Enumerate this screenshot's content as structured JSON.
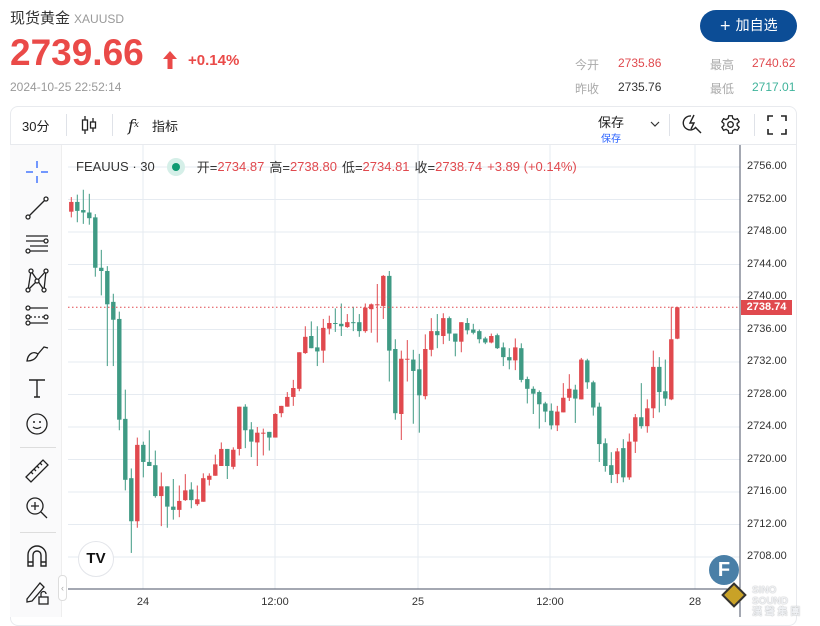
{
  "header": {
    "name": "现货黄金",
    "symbol": "XAUUSD",
    "price": "2739.66",
    "change_pct": "+0.14%",
    "timestamp": "2024-10-25 22:52:14",
    "add_watchlist": "+ 加自选"
  },
  "stats": {
    "open_label": "今开",
    "open": "2735.86",
    "high_label": "最高",
    "high": "2740.62",
    "prev_close_label": "昨收",
    "prev_close": "2735.76",
    "low_label": "最低",
    "low": "2717.01"
  },
  "toolbar": {
    "interval": "30分",
    "indicators": "指标",
    "save": "保存",
    "save_sub": "保存"
  },
  "legend": {
    "title": "FEAUUS · 30",
    "open_label": "开=",
    "open": "2734.87",
    "high_label": "高=",
    "high": "2738.80",
    "low_label": "低=",
    "low": "2734.81",
    "close_label": "收=",
    "close": "2738.74",
    "change": "+3.89 (+0.14%)"
  },
  "colors": {
    "up": "#e0494e",
    "down": "#3f9a84",
    "accent": "#0c4d96"
  },
  "watermark": "SINO SOUND 漢聲集團",
  "chart_data": {
    "type": "candlestick",
    "title": "",
    "xlabel": "",
    "ylabel": "",
    "ylim": [
      2705,
      2758
    ],
    "y_ticks": [
      "2756.00",
      "2752.00",
      "2748.00",
      "2744.00",
      "2740.00",
      "2736.00",
      "2732.00",
      "2728.00",
      "2724.00",
      "2720.00",
      "2716.00",
      "2712.00",
      "2708.00"
    ],
    "x_ticks": [
      "24",
      "12:00",
      "25",
      "12:00",
      "28"
    ],
    "last_price": "2738.74",
    "grid": true,
    "ohlc": [
      [
        2750.5,
        2752.3,
        2749.8,
        2751.7
      ],
      [
        2751.7,
        2752.6,
        2749.2,
        2750.6
      ],
      [
        2750.7,
        2753.2,
        2749.0,
        2750.4
      ],
      [
        2750.4,
        2752.7,
        2748.9,
        2749.7
      ],
      [
        2749.8,
        2750.2,
        2742.5,
        2743.6
      ],
      [
        2743.6,
        2745.8,
        2740.2,
        2743.2
      ],
      [
        2743.2,
        2743.8,
        2731.5,
        2739.1
      ],
      [
        2739.4,
        2740.4,
        2731.5,
        2737.2
      ],
      [
        2737.3,
        2738.2,
        2723.6,
        2724.9
      ],
      [
        2725.0,
        2728.6,
        2716.2,
        2717.5
      ],
      [
        2717.7,
        2718.9,
        2708.5,
        2712.4
      ],
      [
        2712.4,
        2722.7,
        2711.6,
        2721.8
      ],
      [
        2721.8,
        2722.2,
        2717.8,
        2719.7
      ],
      [
        2719.7,
        2723.6,
        2719.2,
        2719.2
      ],
      [
        2719.3,
        2721.1,
        2715.3,
        2715.5
      ],
      [
        2715.5,
        2718.4,
        2711.8,
        2716.7
      ],
      [
        2716.7,
        2716.7,
        2711.6,
        2714.2
      ],
      [
        2714.2,
        2717.6,
        2712.6,
        2713.8
      ],
      [
        2713.8,
        2716.8,
        2712.9,
        2714.9
      ],
      [
        2715.0,
        2718.2,
        2714.9,
        2716.2
      ],
      [
        2716.3,
        2717.2,
        2714.0,
        2715.0
      ],
      [
        2714.5,
        2716.8,
        2714.3,
        2715.1
      ],
      [
        2714.8,
        2718.3,
        2714.8,
        2717.7
      ],
      [
        2717.5,
        2718.3,
        2716.8,
        2718.0
      ],
      [
        2718.0,
        2720.6,
        2718.0,
        2719.4
      ],
      [
        2719.2,
        2722.1,
        2719.2,
        2721.3
      ],
      [
        2721.3,
        2721.3,
        2717.6,
        2719.2
      ],
      [
        2719.1,
        2721.5,
        2718.8,
        2721.2
      ],
      [
        2721.3,
        2726.5,
        2720.5,
        2726.5
      ],
      [
        2726.5,
        2726.8,
        2721.4,
        2723.6
      ],
      [
        2723.7,
        2724.6,
        2720.3,
        2722.2
      ],
      [
        2722.1,
        2724.0,
        2719.2,
        2723.3
      ],
      [
        2723.2,
        2723.8,
        2720.5,
        2723.3
      ],
      [
        2723.4,
        2723.4,
        2721.1,
        2722.7
      ],
      [
        2722.7,
        2725.7,
        2722.7,
        2725.6
      ],
      [
        2725.7,
        2726.6,
        2725.2,
        2726.6
      ],
      [
        2726.5,
        2728.3,
        2726.5,
        2727.7
      ],
      [
        2727.7,
        2729.8,
        2726.6,
        2728.8
      ],
      [
        2728.7,
        2733.2,
        2728.4,
        2733.2
      ],
      [
        2733.1,
        2736.4,
        2733.0,
        2735.1
      ],
      [
        2735.2,
        2737.0,
        2733.7,
        2733.7
      ],
      [
        2733.8,
        2736.4,
        2731.5,
        2733.3
      ],
      [
        2733.4,
        2737.3,
        2731.9,
        2736.2
      ],
      [
        2736.1,
        2737.7,
        2735.4,
        2736.8
      ],
      [
        2736.8,
        2738.6,
        2735.7,
        2736.7
      ],
      [
        2736.7,
        2739.2,
        2735.2,
        2736.4
      ],
      [
        2736.3,
        2737.9,
        2736.2,
        2736.9
      ],
      [
        2736.9,
        2738.8,
        2735.8,
        2736.8
      ],
      [
        2736.9,
        2737.9,
        2735.1,
        2735.8
      ],
      [
        2735.8,
        2739.2,
        2735.6,
        2738.7
      ],
      [
        2738.5,
        2739.2,
        2735.6,
        2739.1
      ],
      [
        2739.0,
        2741.6,
        2734.4,
        2739.1
      ],
      [
        2738.9,
        2742.7,
        2737.3,
        2742.6
      ],
      [
        2742.6,
        2743.2,
        2729.6,
        2733.4
      ],
      [
        2733.6,
        2734.8,
        2724.9,
        2725.7
      ],
      [
        2725.6,
        2733.4,
        2722.4,
        2732.4
      ],
      [
        2732.3,
        2734.7,
        2729.6,
        2732.4
      ],
      [
        2732.3,
        2733.5,
        2724.4,
        2730.9
      ],
      [
        2731.1,
        2733.0,
        2723.3,
        2727.9
      ],
      [
        2727.8,
        2735.4,
        2727.4,
        2733.6
      ],
      [
        2733.5,
        2737.4,
        2732.7,
        2735.8
      ],
      [
        2735.8,
        2737.9,
        2733.7,
        2735.3
      ],
      [
        2735.2,
        2738.0,
        2734.2,
        2737.4
      ],
      [
        2737.4,
        2737.6,
        2734.6,
        2735.5
      ],
      [
        2735.5,
        2735.5,
        2732.7,
        2734.5
      ],
      [
        2734.5,
        2736.9,
        2733.2,
        2736.9
      ],
      [
        2736.8,
        2737.4,
        2735.4,
        2735.9
      ],
      [
        2736.0,
        2736.7,
        2735.4,
        2735.6
      ],
      [
        2735.8,
        2736.0,
        2734.3,
        2734.8
      ],
      [
        2734.9,
        2735.1,
        2734.2,
        2734.4
      ],
      [
        2734.4,
        2735.5,
        2734.3,
        2735.2
      ],
      [
        2735.3,
        2735.5,
        2733.6,
        2733.7
      ],
      [
        2733.8,
        2734.4,
        2731.5,
        2732.6
      ],
      [
        2732.6,
        2733.7,
        2731.1,
        2732.2
      ],
      [
        2732.2,
        2734.9,
        2731.0,
        2733.8
      ],
      [
        2733.7,
        2734.3,
        2729.5,
        2729.8
      ],
      [
        2729.9,
        2730.2,
        2726.9,
        2728.7
      ],
      [
        2728.7,
        2729.0,
        2725.6,
        2728.1
      ],
      [
        2728.3,
        2728.5,
        2723.8,
        2726.8
      ],
      [
        2726.9,
        2727.1,
        2724.6,
        2725.9
      ],
      [
        2726.0,
        2726.9,
        2723.7,
        2724.2
      ],
      [
        2724.2,
        2726.6,
        2723.5,
        2725.9
      ],
      [
        2725.8,
        2729.4,
        2725.8,
        2727.6
      ],
      [
        2727.6,
        2730.5,
        2727.2,
        2728.7
      ],
      [
        2728.6,
        2729.2,
        2724.5,
        2727.5
      ],
      [
        2727.4,
        2732.5,
        2727.4,
        2732.3
      ],
      [
        2732.2,
        2732.4,
        2728.7,
        2729.5
      ],
      [
        2729.5,
        2729.7,
        2725.4,
        2726.4
      ],
      [
        2726.5,
        2727.0,
        2719.7,
        2721.9
      ],
      [
        2722.0,
        2722.6,
        2718.5,
        2719.2
      ],
      [
        2719.3,
        2720.9,
        2717.1,
        2718.1
      ],
      [
        2718.2,
        2721.4,
        2717.1,
        2721.0
      ],
      [
        2721.4,
        2722.5,
        2717.2,
        2717.8
      ],
      [
        2717.8,
        2723.2,
        2717.5,
        2722.2
      ],
      [
        2722.2,
        2725.6,
        2720.8,
        2725.2
      ],
      [
        2725.2,
        2729.4,
        2723.8,
        2724.1
      ],
      [
        2724.1,
        2727.4,
        2723.3,
        2726.3
      ],
      [
        2726.3,
        2733.4,
        2725.1,
        2731.4
      ],
      [
        2731.4,
        2732.6,
        2725.8,
        2728.3
      ],
      [
        2728.4,
        2732.3,
        2726.6,
        2727.5
      ],
      [
        2727.4,
        2738.8,
        2727.3,
        2734.8
      ],
      [
        2734.87,
        2738.8,
        2734.81,
        2738.74
      ]
    ]
  }
}
